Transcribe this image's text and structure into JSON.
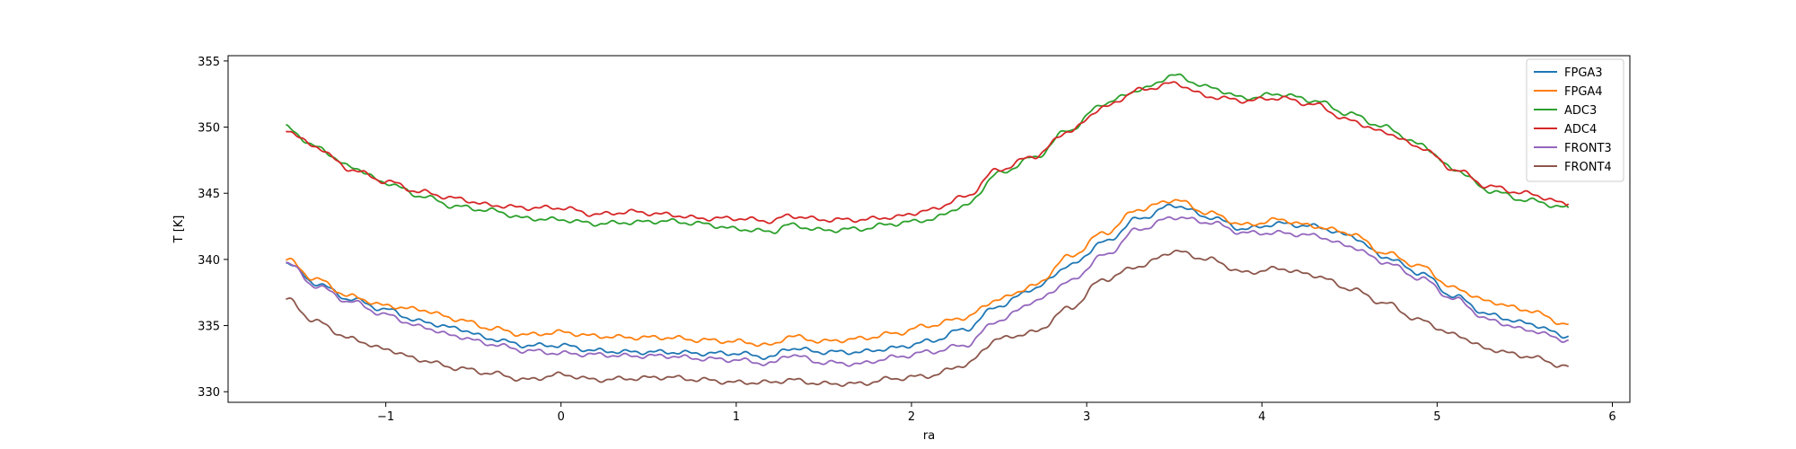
{
  "chart_data": {
    "type": "line",
    "title": "",
    "xlabel": "ra",
    "ylabel": "T [K]",
    "xlim": [
      -1.9,
      6.1
    ],
    "ylim": [
      329.2,
      355.4
    ],
    "xticks": [
      -1,
      0,
      1,
      2,
      3,
      4,
      5,
      6
    ],
    "yticks": [
      330,
      335,
      340,
      345,
      350,
      355
    ],
    "grid": false,
    "legend_position": "top-right",
    "colors": {
      "FPGA3": "#1f77b4",
      "FPGA4": "#ff7f0e",
      "ADC3": "#2ca02c",
      "ADC4": "#d62728",
      "FRONT3": "#9467bd",
      "FRONT4": "#8c564b"
    },
    "x": [
      -1.57,
      -1.4,
      -1.2,
      -1.0,
      -0.8,
      -0.6,
      -0.4,
      -0.2,
      0.0,
      0.2,
      0.4,
      0.6,
      0.8,
      1.0,
      1.2,
      1.3,
      1.5,
      1.7,
      1.9,
      2.1,
      2.3,
      2.5,
      2.7,
      2.9,
      3.1,
      3.3,
      3.5,
      3.7,
      3.9,
      4.1,
      4.3,
      4.5,
      4.7,
      4.9,
      5.1,
      5.3,
      5.5,
      5.75
    ],
    "series": [
      {
        "name": "FPGA3",
        "values": [
          339.8,
          338.2,
          337.0,
          336.2,
          335.3,
          334.8,
          334.0,
          333.5,
          333.5,
          333.1,
          333.0,
          333.0,
          332.9,
          332.9,
          332.6,
          333.3,
          333.0,
          333.0,
          333.3,
          333.8,
          334.7,
          336.5,
          337.8,
          339.5,
          341.3,
          343.1,
          344.1,
          343.2,
          342.3,
          342.7,
          342.5,
          341.8,
          340.2,
          339.0,
          337.2,
          335.8,
          335.2,
          334.2
        ]
      },
      {
        "name": "FPGA4",
        "values": [
          340.0,
          338.5,
          337.2,
          336.5,
          336.2,
          335.5,
          334.8,
          334.3,
          334.5,
          334.2,
          334.1,
          334.1,
          333.9,
          333.8,
          333.5,
          334.2,
          333.8,
          334.0,
          334.4,
          335.0,
          335.6,
          337.0,
          338.0,
          340.2,
          342.0,
          343.8,
          344.5,
          343.5,
          342.6,
          343.0,
          342.5,
          342.0,
          340.5,
          339.5,
          337.8,
          336.8,
          336.2,
          335.1
        ]
      },
      {
        "name": "ADC3",
        "values": [
          350.0,
          348.5,
          347.0,
          345.8,
          344.8,
          344.0,
          343.7,
          343.1,
          343.0,
          342.7,
          342.8,
          342.9,
          342.7,
          342.3,
          342.1,
          342.6,
          342.2,
          342.3,
          342.7,
          343.0,
          344.0,
          346.5,
          347.7,
          349.8,
          351.8,
          352.8,
          353.9,
          353.0,
          352.2,
          352.5,
          352.0,
          351.0,
          350.0,
          348.7,
          346.8,
          345.2,
          344.5,
          343.9
        ]
      },
      {
        "name": "ADC4",
        "values": [
          349.8,
          348.5,
          346.8,
          345.9,
          345.1,
          344.6,
          344.1,
          343.9,
          343.9,
          343.4,
          343.6,
          343.4,
          343.1,
          343.1,
          342.9,
          343.3,
          343.0,
          343.0,
          343.2,
          343.7,
          344.7,
          346.8,
          347.8,
          349.7,
          351.5,
          352.8,
          353.3,
          352.3,
          352.0,
          352.2,
          351.7,
          350.5,
          349.6,
          348.5,
          346.8,
          345.5,
          345.0,
          344.2
        ]
      },
      {
        "name": "FRONT3",
        "values": [
          339.8,
          338.0,
          336.8,
          335.8,
          334.9,
          334.2,
          333.6,
          333.1,
          332.9,
          332.8,
          332.7,
          332.7,
          332.5,
          332.4,
          332.1,
          332.8,
          332.2,
          332.1,
          332.6,
          333.0,
          333.5,
          335.4,
          336.8,
          338.3,
          340.3,
          342.3,
          343.2,
          342.8,
          342.0,
          342.0,
          341.8,
          341.0,
          339.8,
          338.6,
          337.0,
          335.4,
          334.7,
          333.9
        ]
      },
      {
        "name": "FRONT4",
        "values": [
          337.0,
          335.3,
          334.0,
          333.2,
          332.4,
          331.8,
          331.4,
          330.9,
          331.3,
          330.9,
          331.0,
          331.1,
          330.9,
          330.7,
          330.7,
          330.9,
          330.6,
          330.6,
          331.0,
          331.2,
          332.0,
          334.0,
          334.5,
          336.3,
          338.5,
          339.5,
          340.6,
          340.0,
          339.0,
          339.3,
          338.8,
          337.8,
          336.7,
          335.4,
          334.3,
          333.2,
          332.7,
          331.9
        ]
      }
    ]
  }
}
